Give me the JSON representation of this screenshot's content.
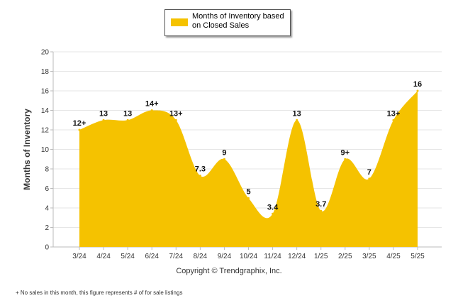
{
  "legend": {
    "label": "Months of Inventory based on Closed Sales",
    "color": "#F5C200"
  },
  "copyright": "Copyright © Trendgraphix, Inc.",
  "footnote": "+ No sales in this month, this figure represents # of for sale listings",
  "chart_data": {
    "type": "area",
    "title": "",
    "xlabel": "",
    "ylabel": "Months of Inventory",
    "ylim": [
      0,
      20
    ],
    "yticks": [
      0,
      2,
      4,
      6,
      8,
      10,
      12,
      14,
      16,
      18,
      20
    ],
    "grid": true,
    "legend_position": "top",
    "categories": [
      "3/24",
      "4/24",
      "5/24",
      "6/24",
      "7/24",
      "8/24",
      "9/24",
      "10/24",
      "11/24",
      "12/24",
      "1/25",
      "2/25",
      "3/25",
      "4/25",
      "5/25"
    ],
    "series": [
      {
        "name": "Months of Inventory based on Closed Sales",
        "color": "#F5C200",
        "values": [
          12,
          13,
          13,
          14,
          13,
          7.3,
          9,
          5,
          3.4,
          13,
          3.7,
          9,
          7,
          13,
          16
        ],
        "labels": [
          "12+",
          "13",
          "13",
          "14+",
          "13+",
          "7.3",
          "9",
          "5",
          "3.4",
          "13",
          "3.7",
          "9+",
          "7",
          "13+",
          "16"
        ]
      }
    ]
  }
}
